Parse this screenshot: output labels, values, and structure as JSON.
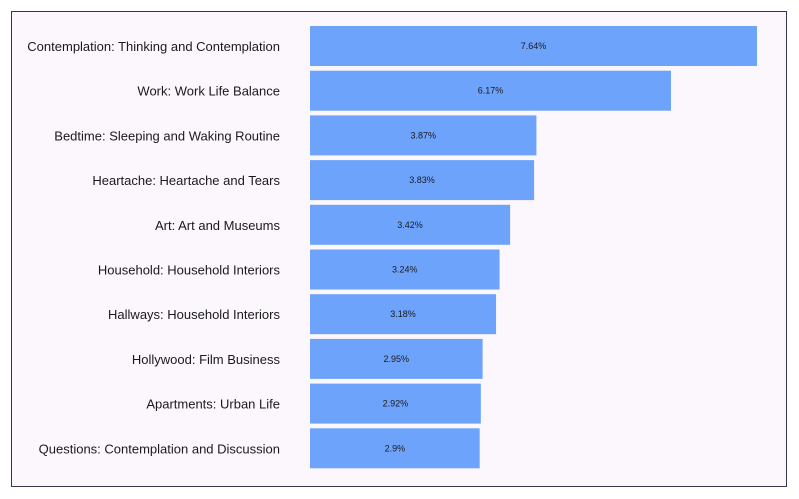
{
  "chart_data": {
    "type": "bar",
    "orientation": "horizontal",
    "title": "",
    "xlabel": "",
    "ylabel": "",
    "categories": [
      "Contemplation: Thinking and Contemplation",
      "Work: Work Life Balance",
      "Bedtime: Sleeping and Waking Routine",
      "Heartache: Heartache and Tears",
      "Art: Art and Museums",
      "Household: Household Interiors",
      "Hallways: Household Interiors",
      "Hollywood: Film Business",
      "Apartments: Urban Life",
      "Questions: Contemplation and Discussion"
    ],
    "values": [
      7.64,
      6.17,
      3.87,
      3.83,
      3.42,
      3.24,
      3.18,
      2.95,
      2.92,
      2.9
    ],
    "value_labels": [
      "7.64%",
      "6.17%",
      "3.87%",
      "3.83%",
      "3.42%",
      "3.24%",
      "3.18%",
      "2.95%",
      "2.92%",
      "2.9%"
    ],
    "xlim": [
      0,
      7.64
    ],
    "grid": false,
    "legend": "none",
    "colors": {
      "bar": "#6ea3fb",
      "background": "#fcf7fd",
      "border": "#3a3550"
    }
  }
}
